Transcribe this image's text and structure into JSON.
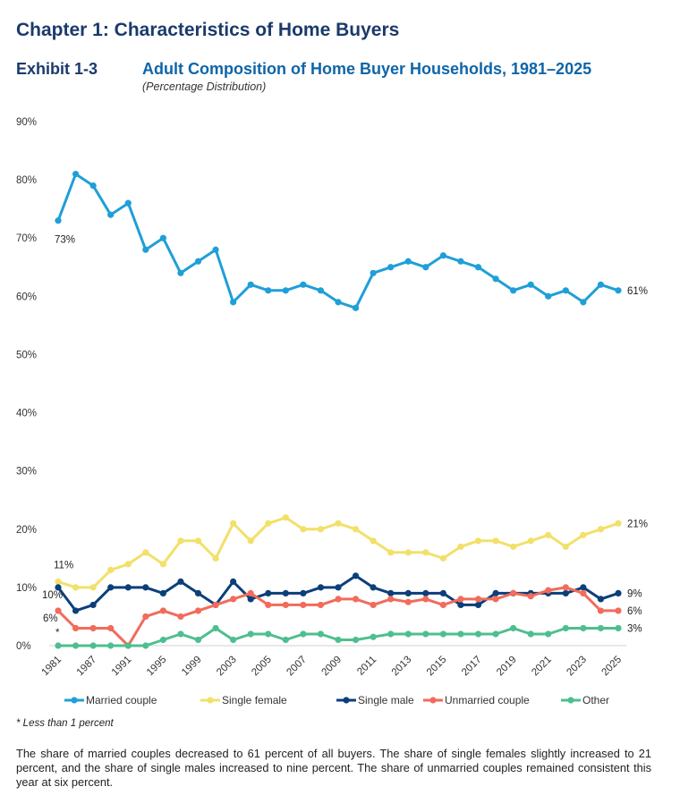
{
  "header": {
    "chapter_title": "Chapter 1: Characteristics of Home Buyers",
    "exhibit_label": "Exhibit 1-3",
    "exhibit_title": "Adult Composition of Home Buyer Households, 1981–2025",
    "exhibit_subtitle": "(Percentage Distribution)"
  },
  "chart_data": {
    "type": "line",
    "title": "Adult Composition of Home Buyer Households, 1981–2025",
    "subtitle": "(Percentage Distribution)",
    "xlabel": "",
    "ylabel": "",
    "ylim": [
      0,
      90
    ],
    "yticks": [
      0,
      10,
      20,
      30,
      40,
      50,
      60,
      70,
      80,
      90
    ],
    "ytick_labels": [
      "0%",
      "10%",
      "20%",
      "30%",
      "40%",
      "50%",
      "60%",
      "70%",
      "80%",
      "90%"
    ],
    "grid": false,
    "x": [
      "1981",
      "1985",
      "1987",
      "1989",
      "1991",
      "1993",
      "1995",
      "1997",
      "1999",
      "2001",
      "2003",
      "2004",
      "2005",
      "2006",
      "2007",
      "2008",
      "2009",
      "2010",
      "2011",
      "2012",
      "2013",
      "2014",
      "2015",
      "2016",
      "2017",
      "2018",
      "2019",
      "2020",
      "2021",
      "2022",
      "2023",
      "2024",
      "2025"
    ],
    "xtick_labels_shown": [
      "1981",
      "1987",
      "1991",
      "1995",
      "1999",
      "2003",
      "2005",
      "2007",
      "2009",
      "2011",
      "2013",
      "2015",
      "2017",
      "2019",
      "2021",
      "2023",
      "2025"
    ],
    "series": [
      {
        "name": "Married couple",
        "color": "#1f9fd8",
        "values": [
          73,
          81,
          79,
          74,
          76,
          68,
          70,
          64,
          66,
          68,
          59,
          62,
          61,
          61,
          62,
          61,
          59,
          58,
          64,
          65,
          66,
          65,
          67,
          66,
          65,
          63,
          61,
          62,
          60,
          61,
          59,
          62,
          61
        ],
        "start_label": "73%",
        "end_label": "61%"
      },
      {
        "name": "Single female",
        "color": "#f2e06a",
        "values": [
          11,
          10,
          10,
          13,
          14,
          16,
          14,
          18,
          18,
          15,
          21,
          18,
          21,
          22,
          20,
          20,
          21,
          20,
          18,
          16,
          16,
          16,
          15,
          17,
          18,
          18,
          17,
          18,
          19,
          17,
          19,
          20,
          21
        ],
        "start_label": "11%",
        "end_label": "21%"
      },
      {
        "name": "Single male",
        "color": "#0b3f7a",
        "values": [
          10,
          6,
          7,
          10,
          10,
          10,
          9,
          11,
          9,
          7,
          11,
          8,
          9,
          9,
          9,
          10,
          10,
          12,
          10,
          9,
          9,
          9,
          9,
          7,
          7,
          9,
          9,
          9,
          9,
          9,
          10,
          8,
          9
        ],
        "start_label": "10%",
        "end_label": "9%"
      },
      {
        "name": "Unmarried couple",
        "color": "#f26b5b",
        "values": [
          6,
          3,
          3,
          3,
          0,
          5,
          6,
          5,
          6,
          7,
          8,
          9,
          7,
          7,
          7,
          7,
          8,
          8,
          7,
          8,
          7.5,
          8,
          7,
          8,
          8,
          8,
          9,
          8.5,
          9.5,
          10,
          9,
          6,
          6
        ],
        "start_label": "6%",
        "end_label": "6%"
      },
      {
        "name": "Other",
        "color": "#4dbf8f",
        "values": [
          0,
          0,
          0,
          0,
          0,
          0,
          1,
          2,
          1,
          3,
          1,
          2,
          2,
          1,
          2,
          2,
          1,
          1,
          1.5,
          2,
          2,
          2,
          2,
          2,
          2,
          2,
          3,
          2,
          2,
          3,
          3,
          3,
          3
        ],
        "start_label": "*",
        "end_label": "3%"
      }
    ],
    "legend": {
      "position": "bottom",
      "entries": [
        "Married couple",
        "Single female",
        "Single male",
        "Unmarried couple",
        "Other"
      ]
    },
    "annotations": [
      "*"
    ]
  },
  "footnote": "* Less than 1 percent",
  "summary": "The share of married couples decreased to 61 percent of all buyers. The share of single females slightly increased to 21 percent, and the share of single males increased to nine percent. The share of unmarried couples remained consistent this year at six percent."
}
